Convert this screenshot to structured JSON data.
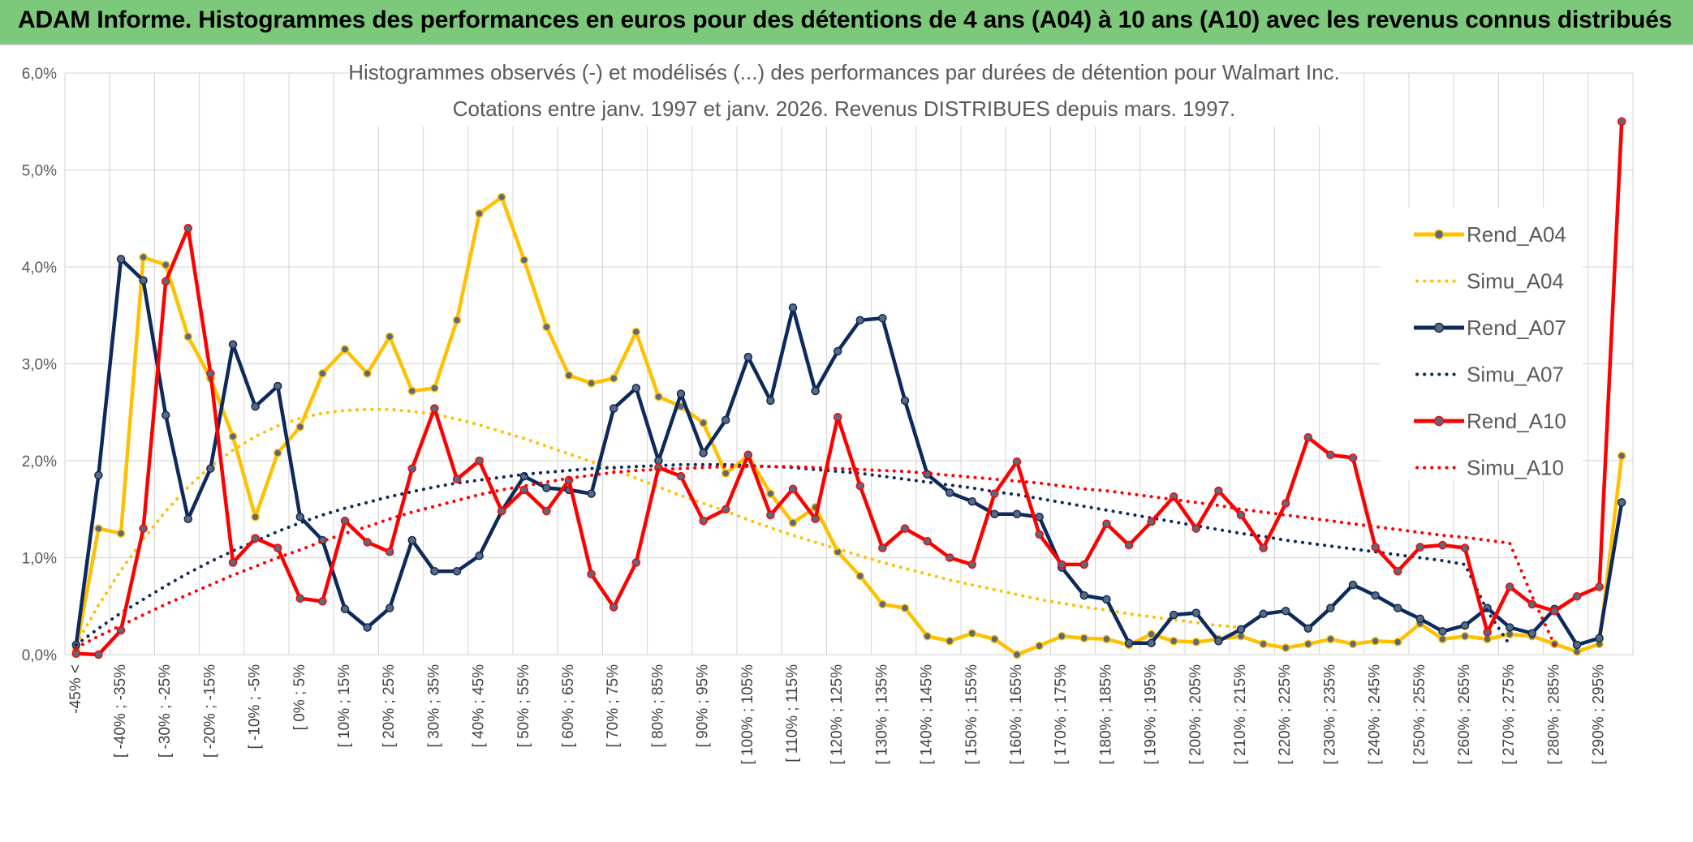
{
  "header": {
    "title": "ADAM Informe. Histogrammes des performances en euros pour des détentions de 4 ans (A04) à 10 ans (A10) avec les revenus connus distribués"
  },
  "colors": {
    "banner": "#7dc97b",
    "a04": "#ffc000",
    "a07": "#0e2a5c",
    "a10": "#ff0000",
    "grid": "#d9d9d9",
    "text": "#595959"
  },
  "chart_data": {
    "type": "line",
    "title": "Histogrammes observés (-) et modélisés (...) des performances par durées de détention pour Walmart Inc.",
    "subtitle": "Cotations entre janv. 1997 et janv. 2026. Revenus DISTRIBUES depuis mars. 1997.",
    "xlabel": "",
    "ylabel": "",
    "ylim": [
      0,
      6
    ],
    "y_ticks": [
      "0,0%",
      "1,0%",
      "2,0%",
      "3,0%",
      "4,0%",
      "5,0%",
      "6,0%"
    ],
    "x_tick_labels": [
      "-45% <",
      "[ -40% ; -35%",
      "[ -30% ; -25%",
      "[ -20% ; -15%",
      "[ -10% ; -5%",
      "[ 0% ; 5%",
      "[ 10% ; 15%",
      "[ 20% ; 25%",
      "[ 30% ; 35%",
      "[ 40% ; 45%",
      "[ 50% ; 55%",
      "[ 60% ; 65%",
      "[ 70% ; 75%",
      "[ 80% ; 85%",
      "[ 90% ; 95%",
      "[ 100% ; 105%",
      "[ 110% ; 115%",
      "[ 120% ; 125%",
      "[ 130% ; 135%",
      "[ 140% ; 145%",
      "[ 150% ; 155%",
      "[ 160% ; 165%",
      "[ 170% ; 175%",
      "[ 180% ; 185%",
      "[ 190% ; 195%",
      "[ 200% ; 205%",
      "[ 210% ; 215%",
      "[ 220% ; 225%",
      "[ 230% ; 235%",
      "[ 240% ; 245%",
      "[ 250% ; 255%",
      "[ 260% ; 265%",
      "[ 270% ; 275%",
      "[ 280% ; 285%",
      "[ 290% ; 295%"
    ],
    "n_points": 70,
    "legend_position": "right",
    "series": [
      {
        "name": "Rend_A04",
        "style": "solid",
        "color": "#ffc000",
        "values": [
          0.05,
          1.3,
          1.25,
          4.1,
          4.02,
          3.28,
          2.85,
          2.25,
          1.42,
          2.08,
          2.35,
          2.9,
          3.15,
          2.9,
          3.28,
          2.72,
          2.75,
          3.45,
          4.55,
          4.72,
          4.07,
          3.38,
          2.88,
          2.8,
          2.85,
          3.33,
          2.66,
          2.56,
          2.39,
          1.87,
          2.05,
          1.66,
          1.36,
          1.52,
          1.06,
          0.81,
          0.52,
          0.48,
          0.19,
          0.14,
          0.22,
          0.16,
          0.0,
          0.09,
          0.19,
          0.17,
          0.16,
          0.1,
          0.21,
          0.14,
          0.13,
          0.16,
          0.19,
          0.11,
          0.07,
          0.11,
          0.16,
          0.11,
          0.14,
          0.13,
          0.32,
          0.16,
          0.19,
          0.16,
          0.21,
          0.19,
          0.11,
          0.03,
          0.11,
          2.05
        ]
      },
      {
        "name": "Simu_A04",
        "style": "dotted",
        "color": "#ffc000",
        "values": [
          0.11,
          0.51,
          0.87,
          1.19,
          1.48,
          1.73,
          1.94,
          2.11,
          2.25,
          2.36,
          2.44,
          2.49,
          2.52,
          2.53,
          2.53,
          2.51,
          2.48,
          2.43,
          2.37,
          2.3,
          2.23,
          2.15,
          2.07,
          1.99,
          1.91,
          1.82,
          1.73,
          1.64,
          1.56,
          1.48,
          1.39,
          1.31,
          1.23,
          1.16,
          1.09,
          1.02,
          0.95,
          0.89,
          0.83,
          0.77,
          0.72,
          0.67,
          0.62,
          0.57,
          0.53,
          0.49,
          0.46,
          0.42,
          0.39,
          0.36,
          0.33,
          0.3,
          0.28
        ]
      },
      {
        "name": "Rend_A07",
        "style": "solid",
        "color": "#0e2a5c",
        "values": [
          0.1,
          1.85,
          4.08,
          3.86,
          2.47,
          1.4,
          1.92,
          3.2,
          2.56,
          2.77,
          1.42,
          1.18,
          0.47,
          0.28,
          0.48,
          1.18,
          0.86,
          0.86,
          1.02,
          1.48,
          1.84,
          1.72,
          1.7,
          1.66,
          2.54,
          2.75,
          2.0,
          2.69,
          2.08,
          2.42,
          3.07,
          2.62,
          3.58,
          2.72,
          3.13,
          3.45,
          3.47,
          2.62,
          1.86,
          1.67,
          1.58,
          1.45,
          1.45,
          1.42,
          0.9,
          0.61,
          0.57,
          0.12,
          0.12,
          0.41,
          0.43,
          0.14,
          0.26,
          0.42,
          0.45,
          0.27,
          0.48,
          0.72,
          0.61,
          0.48,
          0.37,
          0.24,
          0.3,
          0.48,
          0.28,
          0.22,
          0.47,
          0.1,
          0.17,
          1.57
        ]
      },
      {
        "name": "Simu_A07",
        "style": "dotted",
        "color": "#0e2a5c",
        "values": [
          0.1,
          0.27,
          0.43,
          0.57,
          0.71,
          0.84,
          0.96,
          1.07,
          1.17,
          1.27,
          1.36,
          1.44,
          1.51,
          1.57,
          1.63,
          1.68,
          1.73,
          1.77,
          1.8,
          1.83,
          1.86,
          1.88,
          1.9,
          1.92,
          1.93,
          1.94,
          1.95,
          1.96,
          1.96,
          1.96,
          1.95,
          1.94,
          1.93,
          1.91,
          1.89,
          1.87,
          1.84,
          1.81,
          1.78,
          1.75,
          1.72,
          1.68,
          1.65,
          1.61,
          1.57,
          1.53,
          1.49,
          1.45,
          1.41,
          1.37,
          1.33,
          1.29,
          1.25,
          1.22,
          1.18,
          1.15,
          1.12,
          1.09,
          1.06,
          1.03,
          1.0,
          0.97,
          0.93,
          0.45,
          0.1
        ]
      },
      {
        "name": "Rend_A10",
        "style": "solid",
        "color": "#ff0000",
        "values": [
          0.01,
          0.0,
          0.25,
          1.3,
          3.85,
          4.4,
          2.9,
          0.95,
          1.2,
          1.1,
          0.58,
          0.55,
          1.38,
          1.16,
          1.06,
          1.92,
          2.54,
          1.81,
          2.0,
          1.48,
          1.7,
          1.48,
          1.8,
          0.83,
          0.49,
          0.95,
          1.93,
          1.84,
          1.38,
          1.5,
          2.06,
          1.44,
          1.71,
          1.4,
          2.45,
          1.74,
          1.1,
          1.3,
          1.17,
          1.0,
          0.93,
          1.66,
          1.99,
          1.24,
          0.93,
          0.93,
          1.35,
          1.13,
          1.37,
          1.63,
          1.3,
          1.69,
          1.44,
          1.1,
          1.56,
          2.24,
          2.06,
          2.03,
          1.11,
          0.86,
          1.11,
          1.13,
          1.1,
          0.23,
          0.7,
          0.52,
          0.45,
          0.6,
          0.7,
          5.5
        ]
      },
      {
        "name": "Simu_A10",
        "style": "dotted",
        "color": "#ff0000",
        "values": [
          0.07,
          0.19,
          0.3,
          0.41,
          0.52,
          0.62,
          0.72,
          0.82,
          0.91,
          1.0,
          1.08,
          1.17,
          1.25,
          1.32,
          1.4,
          1.47,
          1.53,
          1.59,
          1.65,
          1.7,
          1.74,
          1.78,
          1.82,
          1.85,
          1.88,
          1.9,
          1.91,
          1.92,
          1.93,
          1.94,
          1.94,
          1.94,
          1.94,
          1.93,
          1.92,
          1.91,
          1.9,
          1.89,
          1.87,
          1.85,
          1.83,
          1.81,
          1.79,
          1.77,
          1.74,
          1.71,
          1.69,
          1.66,
          1.63,
          1.6,
          1.57,
          1.54,
          1.5,
          1.47,
          1.44,
          1.41,
          1.38,
          1.35,
          1.32,
          1.29,
          1.26,
          1.23,
          1.21,
          1.18,
          1.15,
          0.6,
          0.1
        ]
      }
    ]
  }
}
